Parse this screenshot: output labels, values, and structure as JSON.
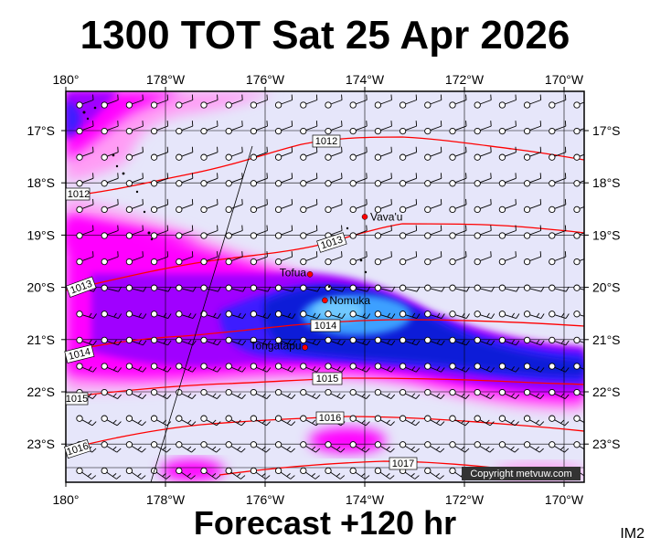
{
  "title": "1300 TOT Sat 25 Apr 2026",
  "footer": "Forecast +120 hr",
  "map_code": "IM2",
  "copyright": "Copyright metvuw.com",
  "lon_labels": [
    "180°",
    "178°W",
    "176°W",
    "174°W",
    "172°W",
    "170°W"
  ],
  "lat_labels": [
    "17°S",
    "18°S",
    "19°S",
    "20°S",
    "21°S",
    "22°S",
    "23°S"
  ],
  "places": [
    {
      "name": "Vava'u",
      "lon": -174.0,
      "lat": -18.65
    },
    {
      "name": "Tofua",
      "lon": -175.1,
      "lat": -19.75
    },
    {
      "name": "Nomuka",
      "lon": -174.8,
      "lat": -20.25
    },
    {
      "name": "Tongatapu",
      "lon": -175.2,
      "lat": -21.15
    }
  ],
  "isobars": [
    {
      "label": "1012"
    },
    {
      "label": "1013"
    },
    {
      "label": "1014"
    },
    {
      "label": "1015"
    },
    {
      "label": "1016"
    },
    {
      "label": "1017"
    }
  ],
  "isobar_edge_labels": [
    "1012",
    "1013",
    "1014",
    "1015",
    "1016"
  ],
  "colors": {
    "background_field": "#e6e6fa",
    "light_magenta": "#ff9cf5",
    "magenta": "#ff00ff",
    "purple": "#a000ff",
    "blue": "#3c1eff",
    "deep_blue": "#0a1cd8",
    "light_blue": "#3ca0ff",
    "isobar": "#ff0000",
    "place_marker": "#ff0000"
  }
}
